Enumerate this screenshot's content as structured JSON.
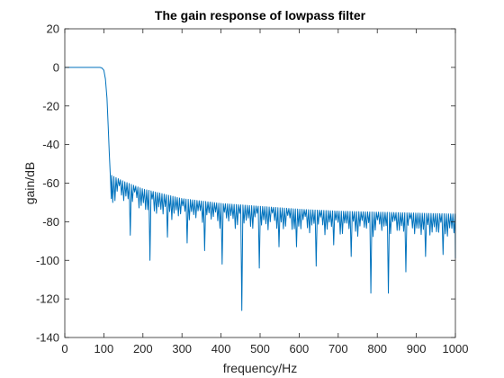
{
  "chart_data": {
    "type": "line",
    "title": "The gain response of lowpass filter",
    "xlabel": "frequency/Hz",
    "ylabel": "gain/dB",
    "xlim": [
      0,
      1000
    ],
    "ylim": [
      -140,
      20
    ],
    "xticks": [
      0,
      100,
      200,
      300,
      400,
      500,
      600,
      700,
      800,
      900,
      1000
    ],
    "yticks": [
      20,
      0,
      -20,
      -40,
      -60,
      -80,
      -100,
      -120,
      -140
    ],
    "grid": false,
    "line_color": "#0072BD",
    "series": [
      {
        "passband": {
          "x_end": 90,
          "gain": 0
        },
        "transition": {
          "x": [
            90,
            95,
            100,
            104,
            108,
            111,
            114,
            117,
            119
          ],
          "y": [
            0,
            -0.3,
            -1.5,
            -6,
            -16,
            -30,
            -45,
            -58,
            -68
          ]
        },
        "stopband_envelope": {
          "x": [
            120,
            150,
            200,
            300,
            400,
            500,
            600,
            700,
            800,
            900,
            1000
          ],
          "y": [
            -56,
            -59,
            -63,
            -68,
            -70.5,
            -72,
            -73.5,
            -74.5,
            -75,
            -75.5,
            -76
          ]
        },
        "stopband_ripple_period_hz": 5.6,
        "deep_nulls": [
          {
            "x": 120,
            "y": -70
          },
          {
            "x": 166,
            "y": -87
          },
          {
            "x": 216,
            "y": -100
          },
          {
            "x": 264,
            "y": -88
          },
          {
            "x": 311,
            "y": -91
          },
          {
            "x": 359,
            "y": -95
          },
          {
            "x": 405,
            "y": -102
          },
          {
            "x": 453,
            "y": -126
          },
          {
            "x": 500,
            "y": -104
          },
          {
            "x": 547,
            "y": -93
          },
          {
            "x": 594,
            "y": -93
          },
          {
            "x": 642,
            "y": -103
          },
          {
            "x": 690,
            "y": -92
          },
          {
            "x": 736,
            "y": -98
          },
          {
            "x": 781,
            "y": -117
          },
          {
            "x": 828,
            "y": -117
          },
          {
            "x": 873,
            "y": -106
          },
          {
            "x": 921,
            "y": -98
          },
          {
            "x": 966,
            "y": -97
          },
          {
            "x": 1000,
            "y": -99
          }
        ]
      }
    ]
  }
}
